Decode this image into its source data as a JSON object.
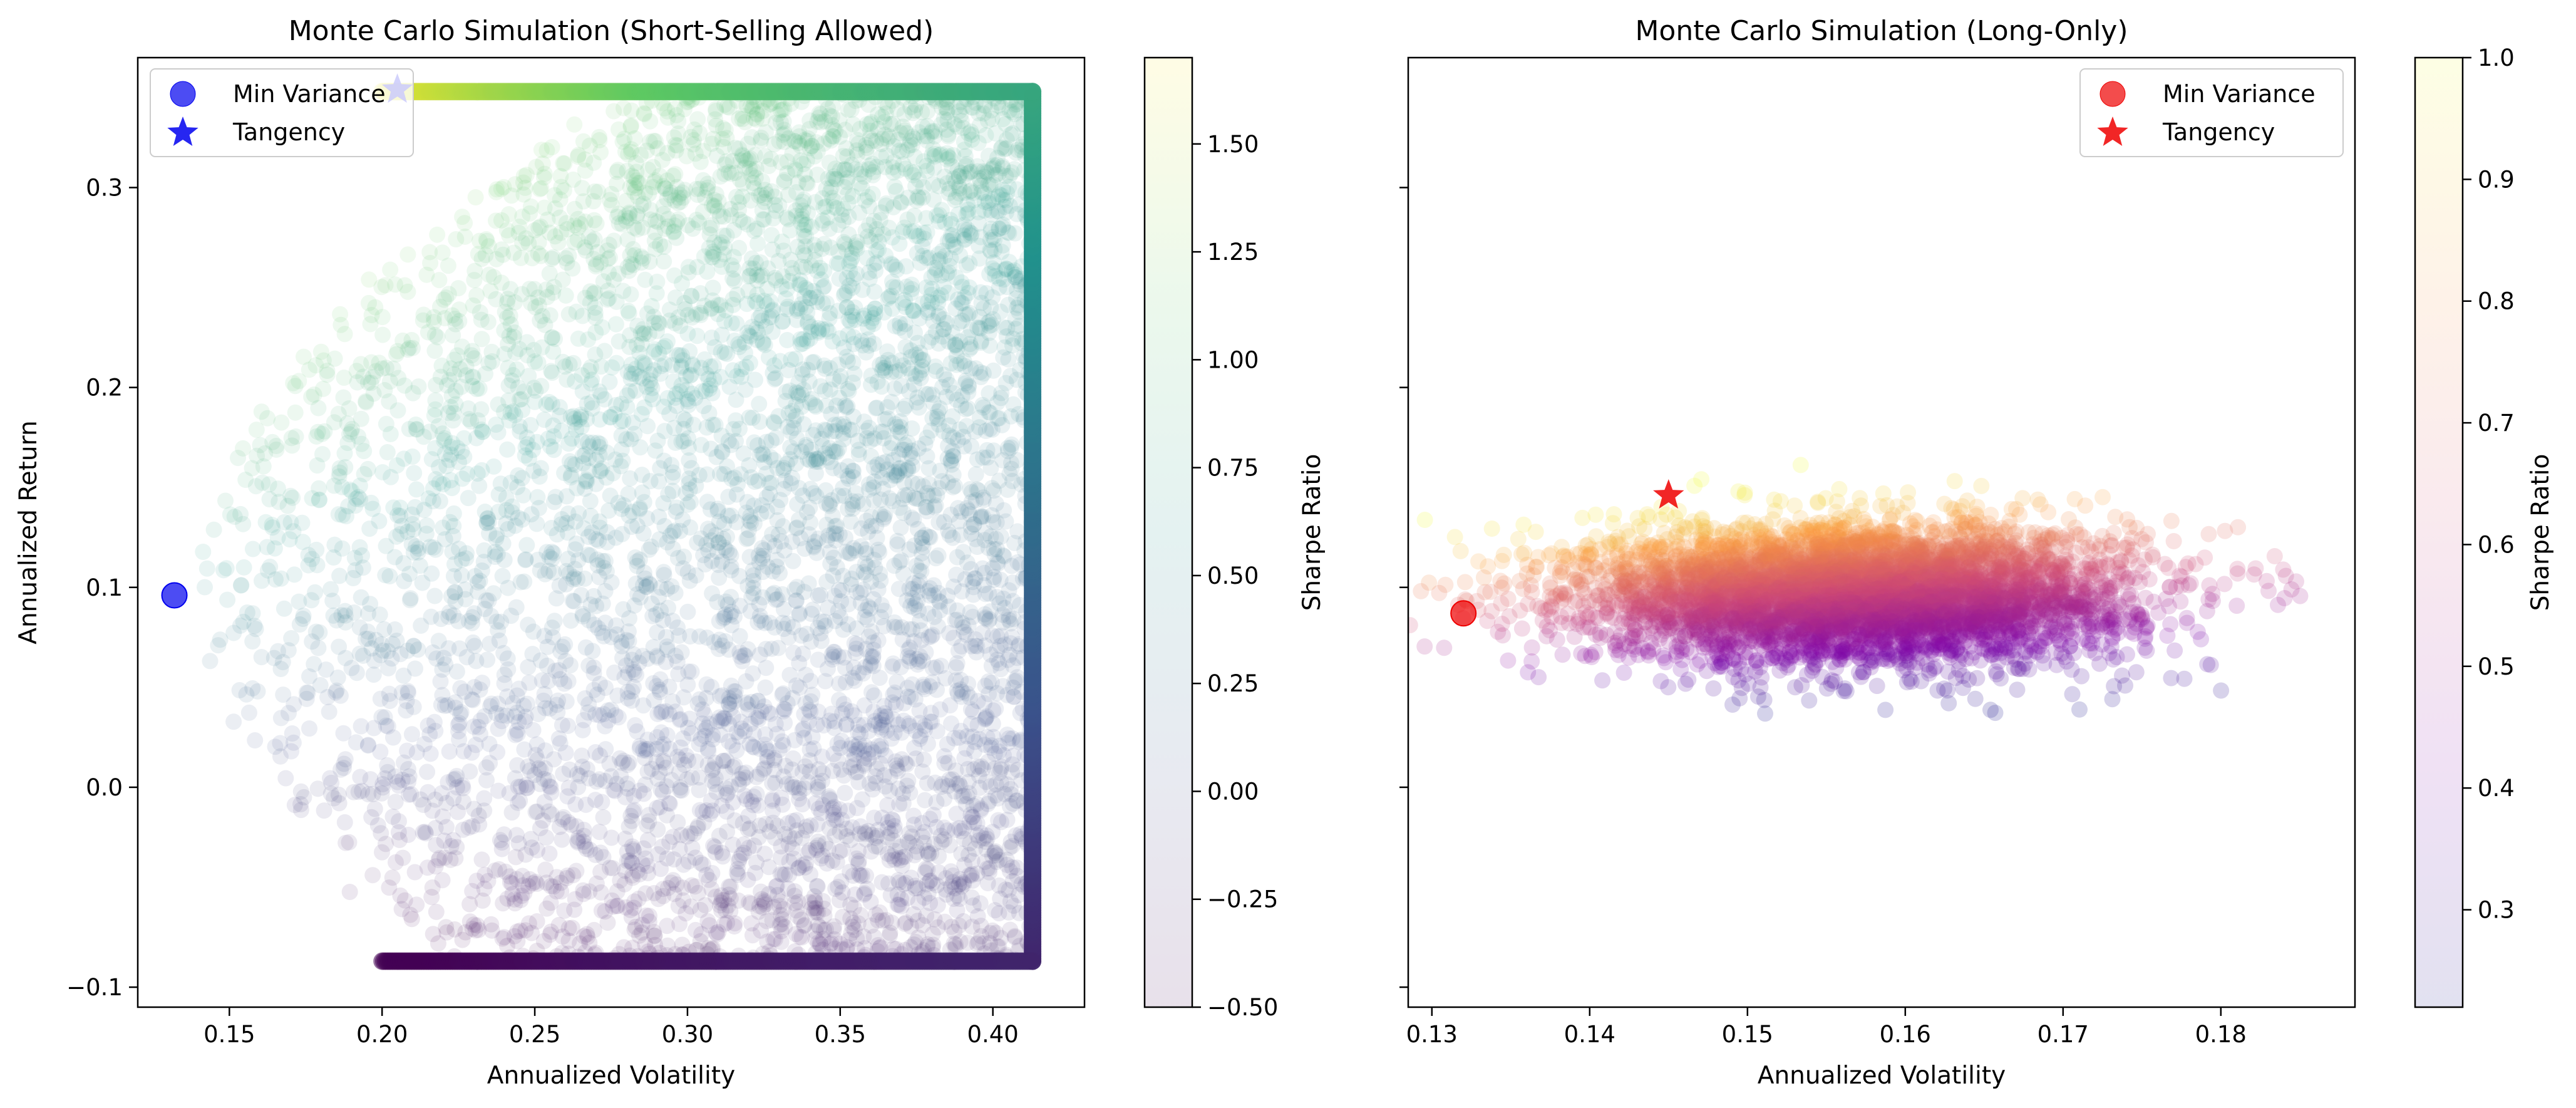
{
  "figure": {
    "background": "#ffffff"
  },
  "chart_data": [
    {
      "type": "scatter",
      "title": "Monte Carlo Simulation (Short-Selling Allowed)",
      "xlabel": "Annualized Volatility",
      "ylabel": "Annualized Return",
      "xlim": [
        0.12,
        0.43
      ],
      "ylim": [
        -0.11,
        0.365
      ],
      "xticks": [
        0.15,
        0.2,
        0.25,
        0.3,
        0.35,
        0.4
      ],
      "xtick_labels": [
        "0.15",
        "0.20",
        "0.25",
        "0.30",
        "0.35",
        "0.40"
      ],
      "yticks": [
        -0.1,
        0.0,
        0.1,
        0.2,
        0.3
      ],
      "ytick_labels": [
        "−0.1",
        "0.0",
        "0.1",
        "0.2",
        "0.3"
      ],
      "grid": false,
      "colormap": "viridis",
      "point_alpha": 0.1,
      "colorbar": {
        "label": "Sharpe Ratio",
        "range": [
          -0.5,
          1.7
        ],
        "ticks": [
          -0.5,
          -0.25,
          0.0,
          0.25,
          0.5,
          0.75,
          1.0,
          1.25,
          1.5
        ],
        "tick_labels": [
          "−0.50",
          "−0.25",
          "0.00",
          "0.25",
          "0.50",
          "0.75",
          "1.00",
          "1.25",
          "1.50"
        ]
      },
      "cloud": {
        "description_region": "portfolio cloud bounded by return in [-0.087, 0.348] and volatility in [0.13, 0.413]",
        "return_min": -0.087,
        "return_max": 0.348,
        "vol_max": 0.413
      },
      "markers": [
        {
          "name": "Min Variance",
          "shape": "circle",
          "color": "#0000ee",
          "x": 0.132,
          "y": 0.096
        },
        {
          "name": "Tangency",
          "shape": "star",
          "color": "#0000ee",
          "x": 0.205,
          "y": 0.349
        }
      ],
      "legend": {
        "placement": "upper-left",
        "entries": [
          "Min Variance",
          "Tangency"
        ]
      }
    },
    {
      "type": "scatter",
      "title": "Monte Carlo Simulation (Long-Only)",
      "xlabel": "Annualized Volatility",
      "ylabel": "",
      "xlim": [
        0.1285,
        0.1885
      ],
      "ylim": [
        -0.11,
        0.365
      ],
      "xticks": [
        0.13,
        0.14,
        0.15,
        0.16,
        0.17,
        0.18
      ],
      "xtick_labels": [
        "0.13",
        "0.14",
        "0.15",
        "0.16",
        "0.17",
        "0.18"
      ],
      "yticks": [
        -0.1,
        0.0,
        0.1,
        0.2,
        0.3
      ],
      "ytick_labels": [
        "",
        "",
        "",
        "",
        ""
      ],
      "grid": false,
      "colormap": "plasma",
      "point_alpha": 0.1,
      "colorbar": {
        "label": "Sharpe Ratio",
        "range": [
          0.22,
          1.0
        ],
        "ticks": [
          0.3,
          0.4,
          0.5,
          0.6,
          0.7,
          0.8,
          0.9,
          1.0
        ],
        "tick_labels": [
          "0.3",
          "0.4",
          "0.5",
          "0.6",
          "0.7",
          "0.8",
          "0.9",
          "1.0"
        ]
      },
      "cloud": {
        "center_vol": 0.157,
        "center_return": 0.097,
        "vol_spread": 0.0085,
        "return_spread": 0.017
      },
      "markers": [
        {
          "name": "Min Variance",
          "shape": "circle",
          "color": "#ee0000",
          "x": 0.132,
          "y": 0.087
        },
        {
          "name": "Tangency",
          "shape": "star",
          "color": "#ee0000",
          "x": 0.145,
          "y": 0.146
        }
      ],
      "legend": {
        "placement": "upper-right",
        "entries": [
          "Min Variance",
          "Tangency"
        ]
      }
    }
  ]
}
